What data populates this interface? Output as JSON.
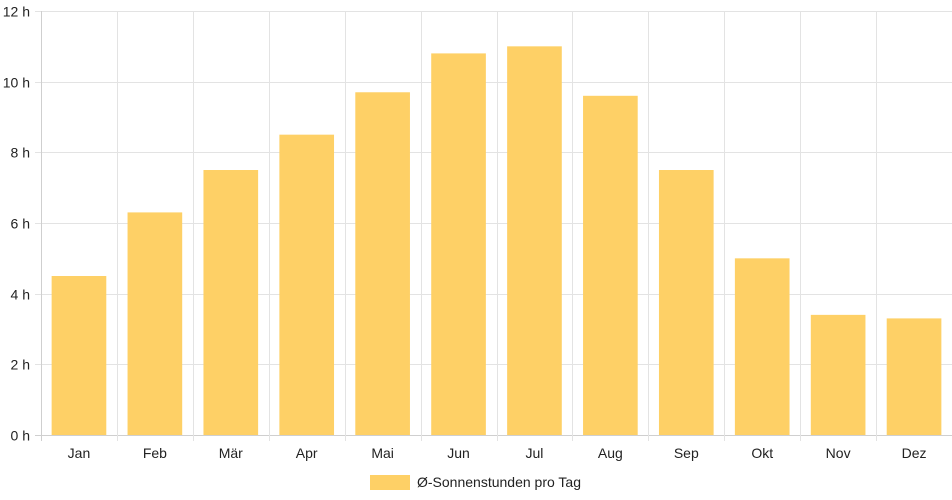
{
  "chart_data": {
    "type": "bar",
    "categories": [
      "Jan",
      "Feb",
      "Mär",
      "Apr",
      "Mai",
      "Jun",
      "Jul",
      "Aug",
      "Sep",
      "Okt",
      "Nov",
      "Dez"
    ],
    "series": [
      {
        "name": "Ø-Sonnenstunden pro Tag",
        "values": [
          4.5,
          6.3,
          7.5,
          8.5,
          9.7,
          10.8,
          11.0,
          9.6,
          7.5,
          5.0,
          3.4,
          3.3
        ]
      }
    ],
    "ylim": [
      0,
      12
    ],
    "y_ticks": [
      0,
      2,
      4,
      6,
      8,
      10,
      12
    ],
    "y_tick_suffix": " h",
    "grid": true,
    "legend_position": "bottom",
    "colors": {
      "bar": "#fed066",
      "grid": "#e3e3e3",
      "text": "#222222"
    }
  }
}
